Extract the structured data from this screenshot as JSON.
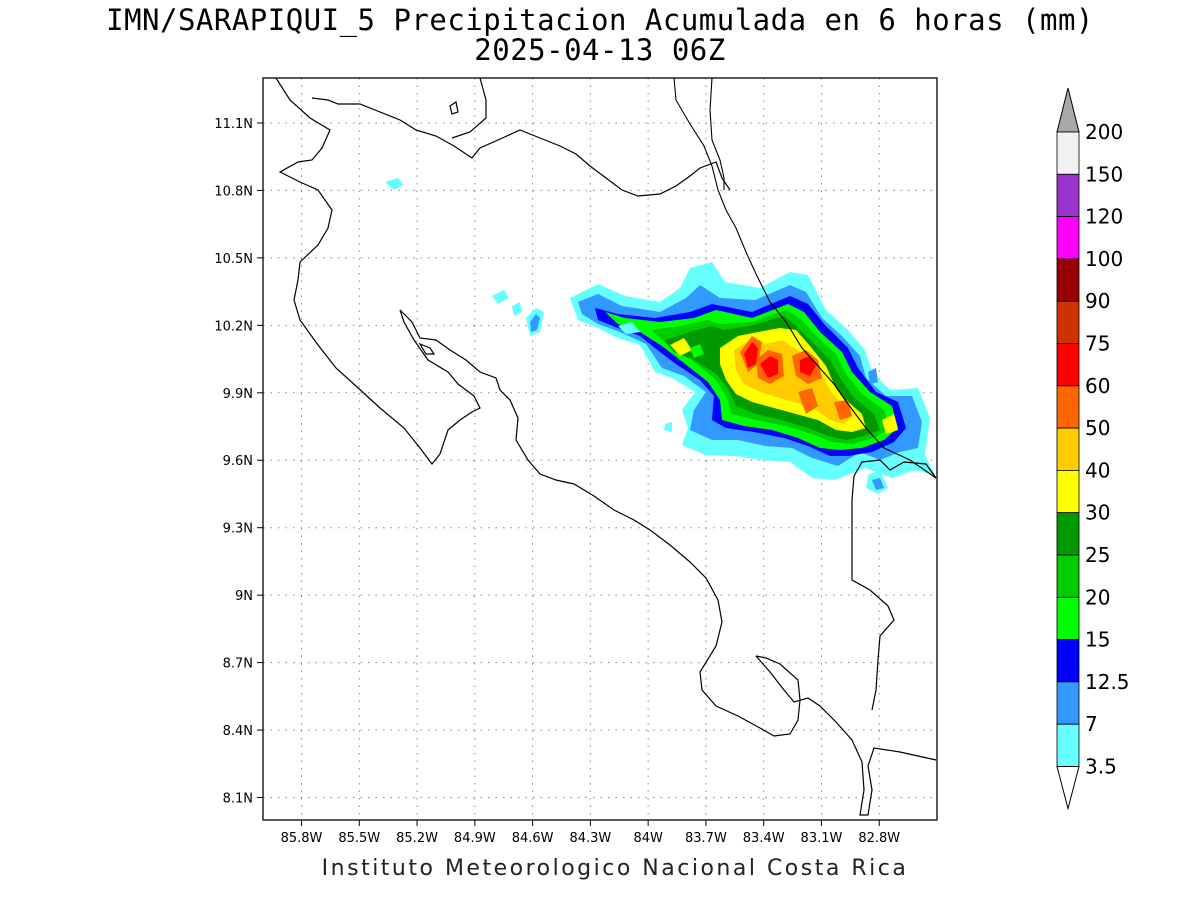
{
  "title": "IMN/SARAPIQUI_5 Precipitacion Acumulada en 6 horas (mm)",
  "subtitle": "2025-04-13 06Z",
  "footer": "Instituto Meteorologico Nacional Costa Rica",
  "map": {
    "lon_range": [
      -86.0,
      -82.5
    ],
    "lat_range": [
      8.0,
      11.3
    ],
    "grid": "dotted",
    "lon_ticks": [
      "85.8W",
      "85.5W",
      "85.2W",
      "84.9W",
      "84.6W",
      "84.3W",
      "84W",
      "83.7W",
      "83.4W",
      "83.1W",
      "82.8W"
    ],
    "lon_values": [
      -85.8,
      -85.5,
      -85.2,
      -84.9,
      -84.6,
      -84.3,
      -84.0,
      -83.7,
      -83.4,
      -83.1,
      -82.8
    ],
    "lat_ticks": [
      "11.1N",
      "10.8N",
      "10.5N",
      "10.2N",
      "9.9N",
      "9.6N",
      "9.3N",
      "9N",
      "8.7N",
      "8.4N",
      "8.1N"
    ],
    "lat_values": [
      11.1,
      10.8,
      10.5,
      10.2,
      9.9,
      9.6,
      9.3,
      9.0,
      8.7,
      8.4,
      8.1
    ]
  },
  "colorbar": {
    "labels": [
      "3.5",
      "7",
      "12.5",
      "15",
      "20",
      "25",
      "30",
      "40",
      "50",
      "60",
      "75",
      "90",
      "100",
      "120",
      "150",
      "200"
    ],
    "colors": [
      "#66ffff",
      "#3399ff",
      "#0000ff",
      "#00ff00",
      "#00cc00",
      "#009900",
      "#ffff00",
      "#ffcc00",
      "#ff6600",
      "#ff0000",
      "#cc3300",
      "#990000",
      "#ff00ff",
      "#9933cc",
      "#f2f2f2"
    ],
    "below_color": "#ffffff",
    "above_color": "#a8a8a8"
  },
  "precipitation": {
    "units": "mm",
    "pattern": "band oriented WNW-ESE over northeastern Costa Rica (Caribbean slope), maxima 60-75 mm near 83.4W 10.0N"
  }
}
